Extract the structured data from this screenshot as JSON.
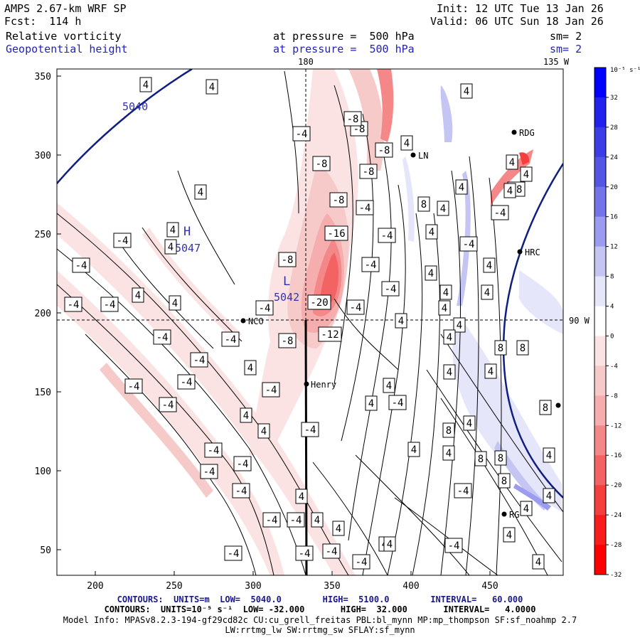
{
  "header": {
    "model": "AMPS 2.67-km WRF SP",
    "init": "Init: 12 UTC Tue 13 Jan 26",
    "forecast": "Fcst:  114 h",
    "valid": "Valid: 06 UTC Sun 18 Jan 26",
    "field1": "Relative vorticity",
    "field1_level": "at pressure =  500 hPa",
    "field1_sm": "sm= 2",
    "field2": "Geopotential height",
    "field2_level": "at pressure =  500 hPa",
    "field2_sm": "sm= 2"
  },
  "map": {
    "lon_labels": [
      "180",
      "135 W",
      "90 W"
    ],
    "x_ticks": [
      "200",
      "250",
      "300",
      "350",
      "400",
      "450"
    ],
    "y_ticks": [
      "350",
      "300",
      "250",
      "200",
      "150",
      "100",
      "50"
    ],
    "stations": [
      "RDG",
      "LN",
      "HRC",
      "NCO",
      "Henry",
      "RG"
    ],
    "extremes": [
      {
        "symbol": "H",
        "value": "5047"
      },
      {
        "symbol": "L",
        "value": "5042"
      }
    ],
    "height_label": "5040",
    "contour_labels": [
      "4",
      "-4",
      "-8",
      "-12",
      "-16",
      "-20",
      "8"
    ]
  },
  "colorbar": {
    "unit": "10⁻⁵ s⁻¹",
    "ticks": [
      "32",
      "28",
      "24",
      "20",
      "16",
      "12",
      "8",
      "4",
      "0",
      "-4",
      "-8",
      "-12",
      "-16",
      "-20",
      "-24",
      "-28",
      "-32"
    ],
    "colors": [
      "#0000ff",
      "#2222ee",
      "#3d3de6",
      "#5555e4",
      "#7373ea",
      "#9b9bef",
      "#c5c5f4",
      "#e6e6fb",
      "#ffffff",
      "#fbe3e3",
      "#f7caca",
      "#f5adad",
      "#f48888",
      "#f36363",
      "#f53e3e",
      "#f71d1d",
      "#fd0000"
    ]
  },
  "footer": {
    "line1_a": "CONTOURS:  UNITS=m  LOW=  5040.0        HIGH=  5100.0        INTERVAL=   60.000",
    "line2": "CONTOURS:  UNITS=10⁻⁵ s⁻¹  LOW= -32.000       HIGH=  32.000       INTERVAL=   4.0000",
    "line3": "Model Info: MPASv8.2.3-194-gf29cd82c CU:cu_grell_freitas PBL:bl_mynn MP:mp_thompson SF:sf_noahmp 2.7",
    "line4": "LW:rrtmg_lw SW:rrtmg_sw SFLAY:sf_mynn"
  }
}
